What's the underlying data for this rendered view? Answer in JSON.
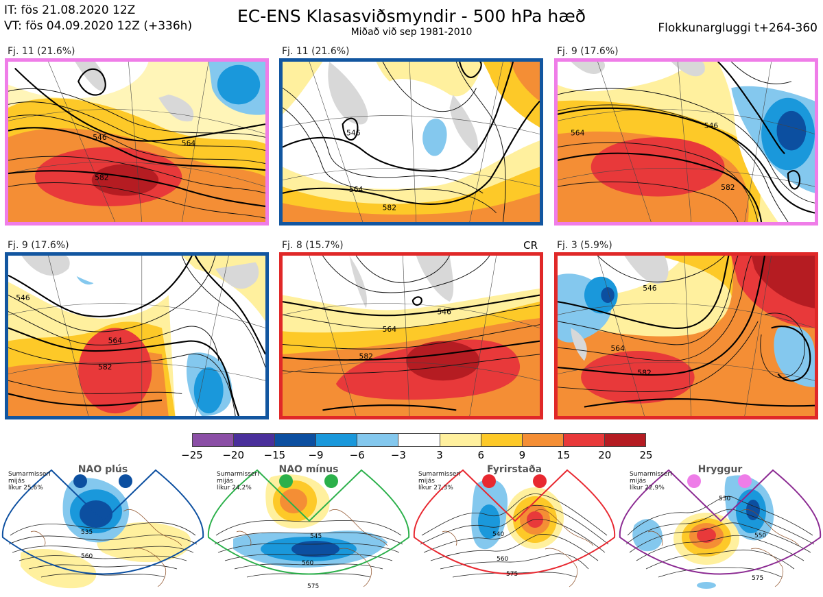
{
  "header": {
    "init_time": "IT: fös 21.08.2020 12Z",
    "valid_time": "VT: fös 04.09.2020 12Z  (+336h)",
    "title": "EC-ENS Klasasviðsmyndir - 500 hPa hæð",
    "subtitle": "Miðað við sep 1981-2010",
    "window": "Flokkunargluggi t+264-360"
  },
  "clusters": [
    {
      "label": "Fj. 11 (21.6%)",
      "tag": "",
      "border_color": "#ef7de8"
    },
    {
      "label": "Fj. 11 (21.6%)",
      "tag": "",
      "border_color": "#1256a0"
    },
    {
      "label": "Fj. 9 (17.6%)",
      "tag": "",
      "border_color": "#ef7de8"
    },
    {
      "label": "Fj. 9 (17.6%)",
      "tag": "",
      "border_color": "#1256a0"
    },
    {
      "label": "Fj. 8 (15.7%)",
      "tag": "CR",
      "border_color": "#e02828"
    },
    {
      "label": "Fj. 3 (5.9%)",
      "tag": "",
      "border_color": "#e02828"
    }
  ],
  "contour_labels": [
    "546",
    "564",
    "582"
  ],
  "colorbar": {
    "ticks": [
      "−25",
      "−20",
      "−15",
      "−9",
      "−6",
      "−3",
      "3",
      "6",
      "9",
      "15",
      "20",
      "25"
    ],
    "colors": [
      "#8b4fa6",
      "#4a2f9b",
      "#0c4fa0",
      "#1a98db",
      "#84c8ee",
      "#ffffff",
      "#fff09e",
      "#fdc928",
      "#f48e35",
      "#e8393a",
      "#b51c22"
    ]
  },
  "regimes": [
    {
      "name": "NAO plús",
      "note_l1": "Sumarmisseri",
      "note_l2": "mijás",
      "note_l3": "líkur 25,6%",
      "dot_color": "#0c4fa0",
      "fan_color": "#0c4fa0",
      "labels": [
        "535",
        "560"
      ]
    },
    {
      "name": "NAO mínus",
      "note_l1": "Sumarmisseri",
      "note_l2": "mijás",
      "note_l3": "líkur 24,2%",
      "dot_color": "#2bb04a",
      "fan_color": "#2bb04a",
      "labels": [
        "545",
        "560",
        "575"
      ]
    },
    {
      "name": "Fyrirstaða",
      "note_l1": "Sumarmisseri",
      "note_l2": "mijás",
      "note_l3": "líkur 27,3%",
      "dot_color": "#e82830",
      "fan_color": "#e82830",
      "labels": [
        "540",
        "560",
        "575"
      ]
    },
    {
      "name": "Hryggur",
      "note_l1": "Sumarmisseri",
      "note_l2": "mijás",
      "note_l3": "líkur 22,9%",
      "dot_color": "#ee7de8",
      "fan_color": "#8b2a92",
      "labels": [
        "530",
        "550",
        "575"
      ]
    }
  ]
}
